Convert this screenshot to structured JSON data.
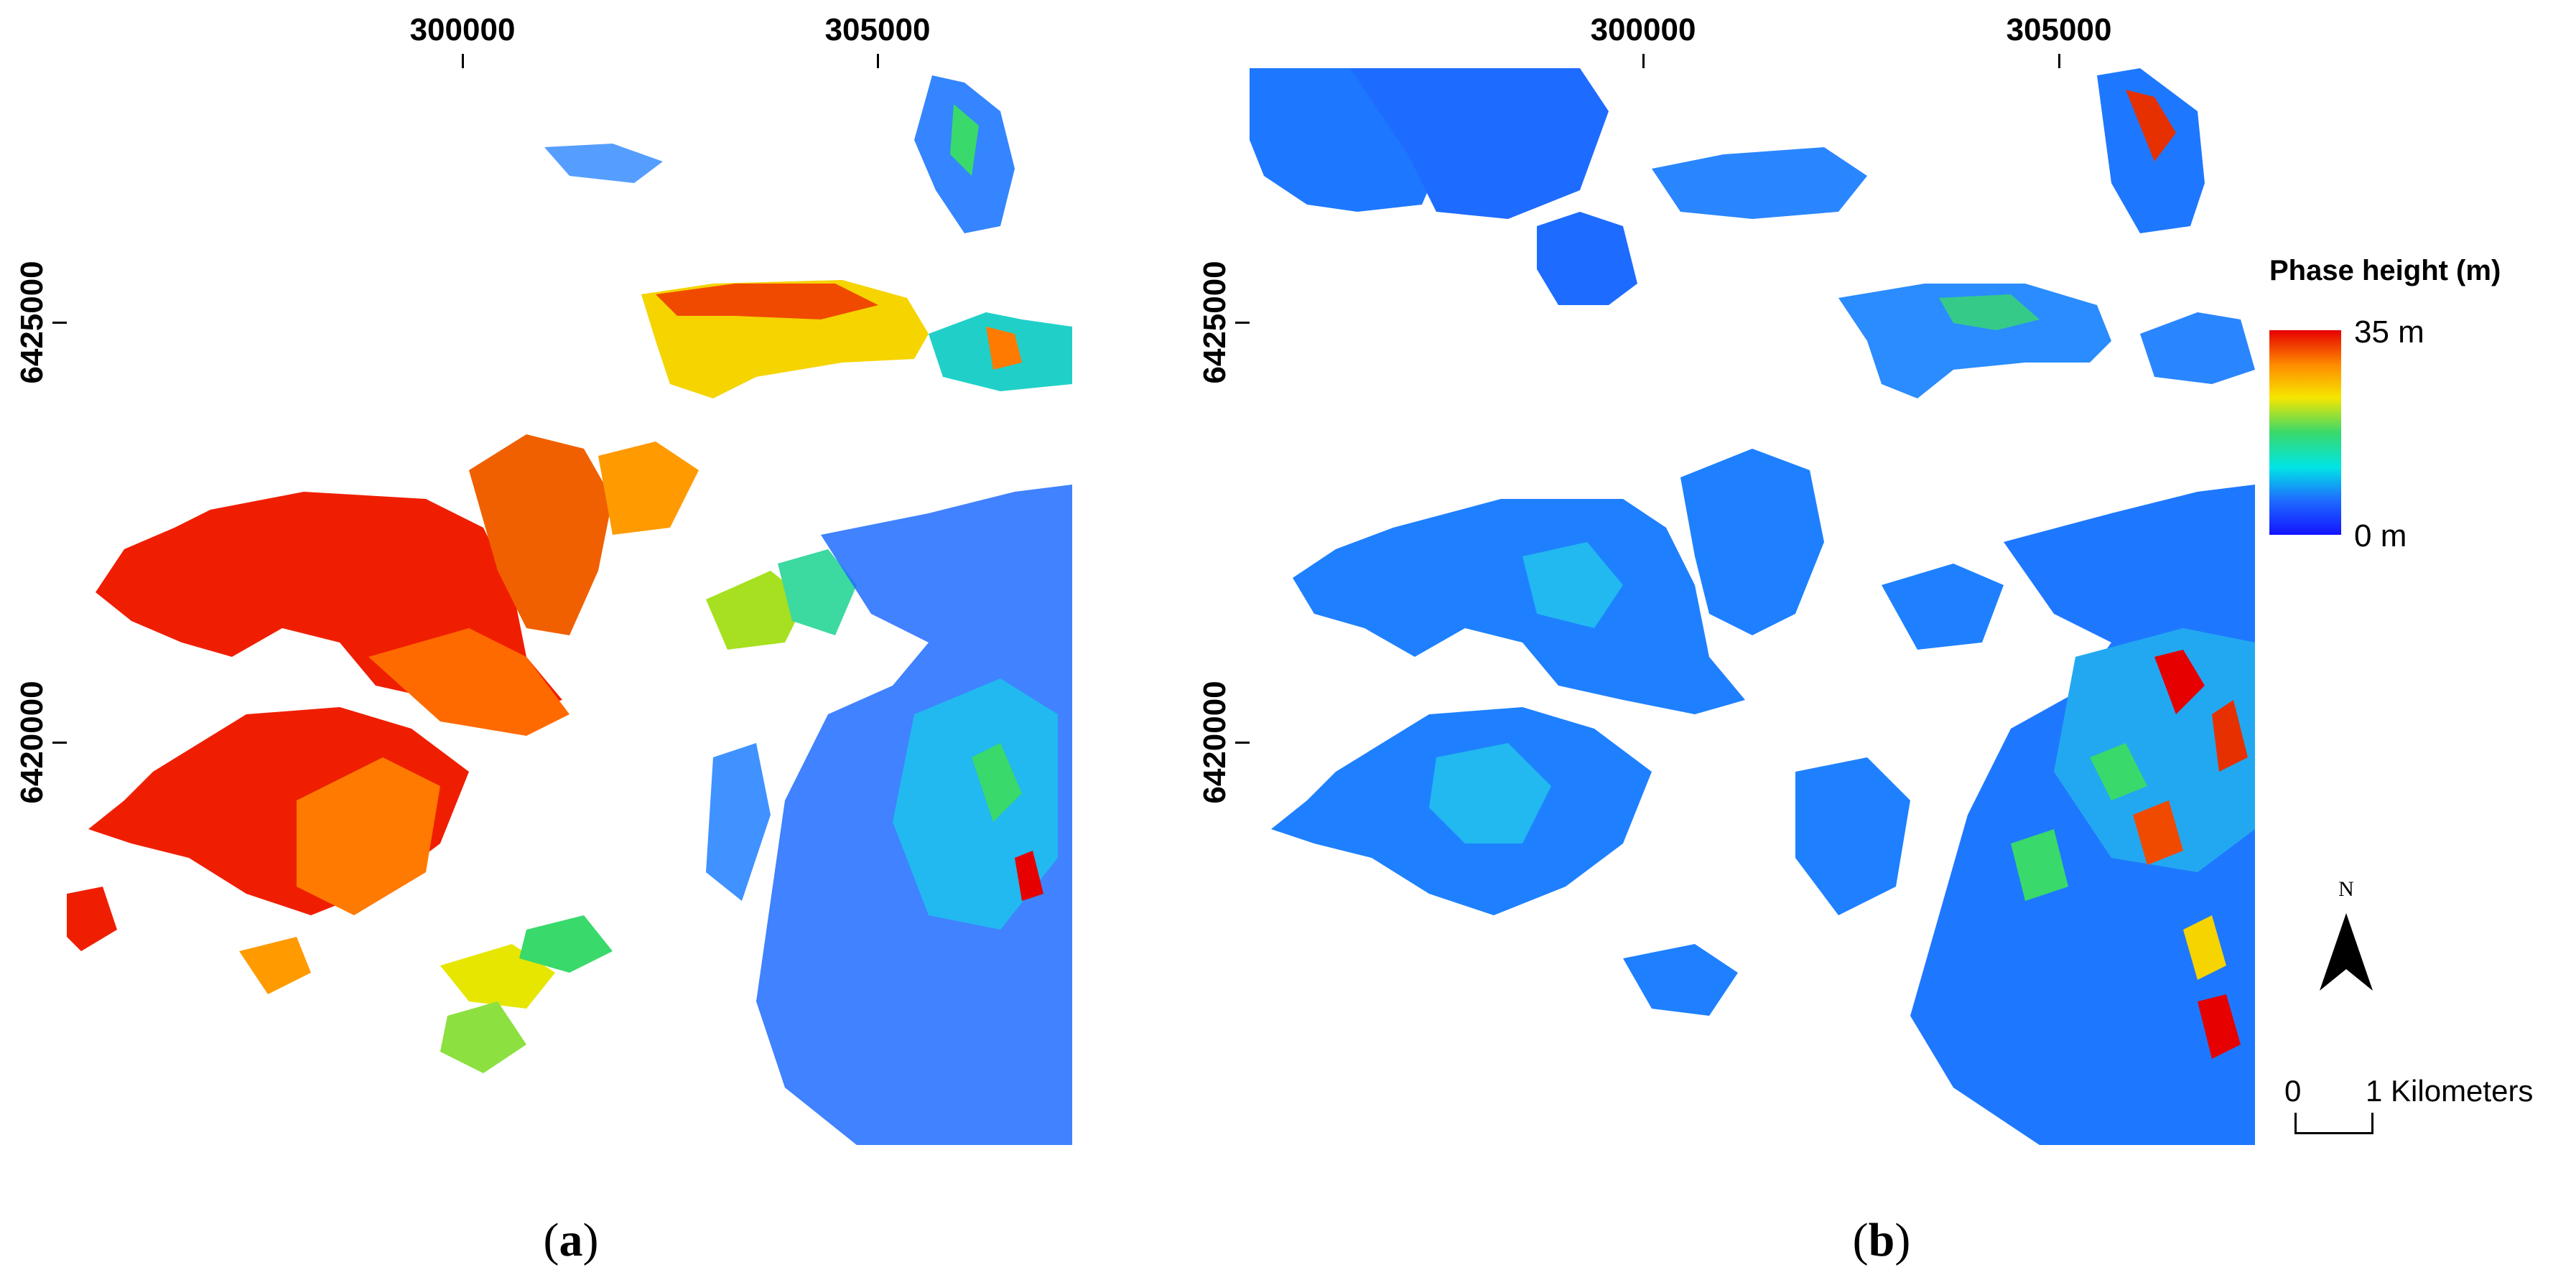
{
  "panel_a": {
    "label_paren_open": "(",
    "label_letter": "a",
    "label_paren_close": ")",
    "x_ticks": [
      "300000",
      "305000"
    ],
    "y_ticks": [
      "6425000",
      "6420000"
    ]
  },
  "panel_b": {
    "label_paren_open": "(",
    "label_letter": "b",
    "label_paren_close": ")",
    "x_ticks": [
      "300000",
      "305000"
    ],
    "y_ticks": [
      "6425000",
      "6420000"
    ]
  },
  "legend": {
    "title": "Phase height (m)",
    "max_label": "35 m",
    "min_label": "0 m",
    "colors": [
      "#e60000",
      "#ff8c00",
      "#f5e600",
      "#39d96b",
      "#00e5e5",
      "#1e6cff",
      "#1414ff"
    ]
  },
  "north_arrow": {
    "letter": "N"
  },
  "scale_bar": {
    "start": "0",
    "end": "1",
    "unit": "Kilometers"
  }
}
